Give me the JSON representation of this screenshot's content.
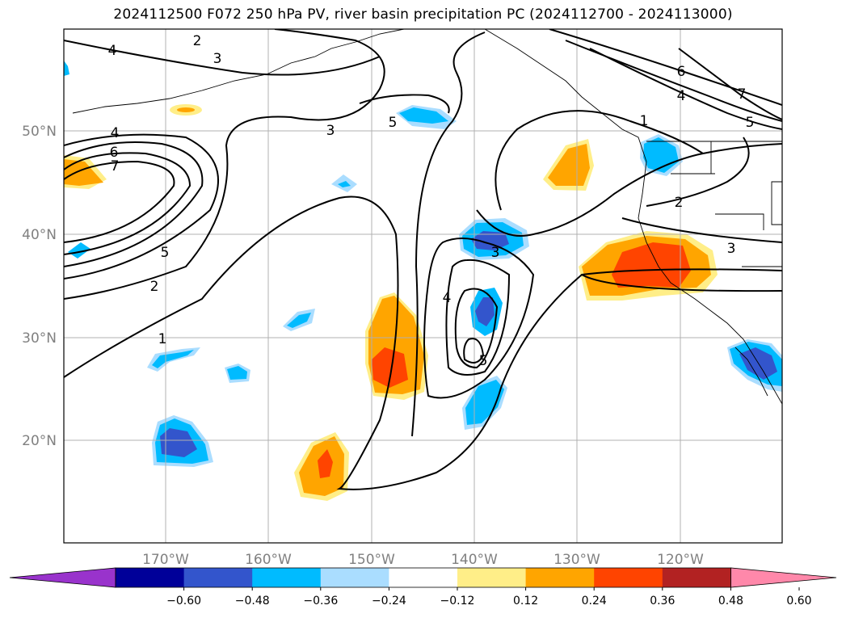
{
  "title": "2024112500 F072 250 hPa PV, river basin precipitation PC (2024112700 - 2024113000)",
  "map": {
    "lat_labels": [
      "50°N",
      "40°N",
      "30°N",
      "20°N"
    ],
    "lon_labels": [
      "170°W",
      "160°W",
      "150°W",
      "140°W",
      "130°W",
      "120°W"
    ],
    "contour_labels": [
      "1",
      "2",
      "3",
      "4",
      "5",
      "6",
      "7"
    ]
  },
  "colorbar": {
    "colors": [
      "#9933cc",
      "#000099",
      "#3355cc",
      "#00bbff",
      "#aaddff",
      "#ffffff",
      "#ffee88",
      "#ffa500",
      "#ff4400",
      "#b22222",
      "#ff88aa"
    ],
    "tick_labels": [
      "−0.60",
      "−0.48",
      "−0.36",
      "−0.24",
      "−0.12",
      "0.12",
      "0.24",
      "0.36",
      "0.48",
      "0.60"
    ]
  },
  "legend_colors": {
    "neg_light": "#aaddff",
    "neg_mid": "#00bbff",
    "neg_strong": "#3355cc",
    "pos_light": "#ffee88",
    "pos_mid": "#ffa500",
    "pos_strong": "#ff4400"
  }
}
